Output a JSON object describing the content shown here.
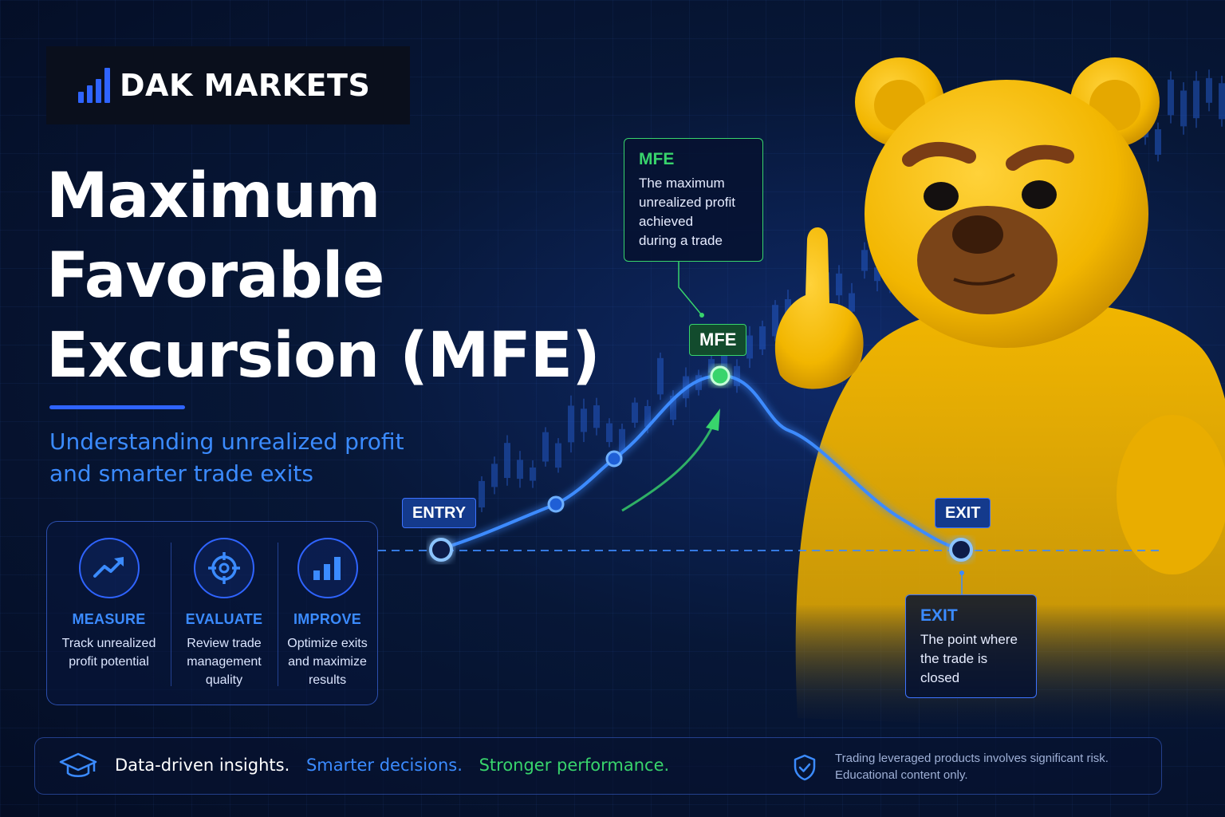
{
  "brand": {
    "name": "DAK MARKETS",
    "accent": "#2f64ff"
  },
  "hero": {
    "title_lines": [
      "Maximum",
      "Favorable",
      "Excursion (MFE)"
    ],
    "subtitle_lines": [
      "Understanding unrealized profit",
      "and smarter trade exits"
    ]
  },
  "features": [
    {
      "icon": "trend-up-icon",
      "label": "MEASURE",
      "desc_lines": [
        "Track unrealized",
        "profit potential"
      ]
    },
    {
      "icon": "target-icon",
      "label": "EVALUATE",
      "desc_lines": [
        "Review trade",
        "management",
        "quality"
      ]
    },
    {
      "icon": "bar-chart-icon",
      "label": "IMPROVE",
      "desc_lines": [
        "Optimize exits",
        "and maximize",
        "results"
      ]
    }
  ],
  "chart": {
    "entry_label": "ENTRY",
    "mfe_label": "MFE",
    "exit_label": "EXIT",
    "colors": {
      "line": "#3d8bff",
      "mfe": "#38d46c"
    }
  },
  "callouts": {
    "mfe": {
      "title": "MFE",
      "text_lines": [
        "The maximum",
        "unrealized profit",
        "achieved",
        "during a trade"
      ]
    },
    "exit": {
      "title": "EXIT",
      "text_lines": [
        "The point where",
        "the trade is",
        "closed"
      ]
    }
  },
  "footer": {
    "icon": "graduation-cap-icon",
    "msg1": "Data-driven insights.",
    "msg2": "Smarter decisions.",
    "msg3": "Stronger performance.",
    "shield_icon": "shield-check-icon",
    "disclaimer_lines": [
      "Trading leveraged products involves significant risk.",
      "Educational content only."
    ]
  }
}
